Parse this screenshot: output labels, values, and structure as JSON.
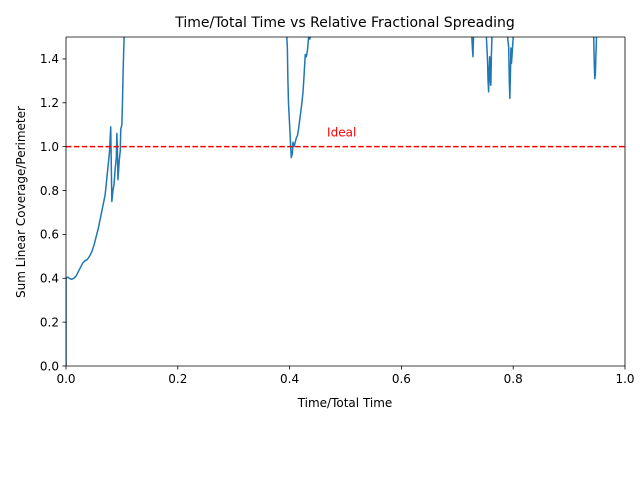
{
  "chart_data": {
    "type": "line",
    "title": "Time/Total Time vs Relative Fractional Spreading",
    "xlabel": "Time/Total Time",
    "ylabel": "Sum Linear Coverage/Perimeter",
    "xlim": [
      0,
      1
    ],
    "ylim": [
      0,
      1.5
    ],
    "xticks": [
      0.0,
      0.2,
      0.4,
      0.6,
      0.8,
      1.0
    ],
    "xtick_labels": [
      "0.0",
      "0.2",
      "0.4",
      "0.6",
      "0.8",
      "1.0"
    ],
    "yticks": [
      0.0,
      0.2,
      0.4,
      0.6,
      0.8,
      1.0,
      1.2,
      1.4
    ],
    "ytick_labels": [
      "0.0",
      "0.2",
      "0.4",
      "0.6",
      "0.8",
      "1.0",
      "1.2",
      "1.4"
    ],
    "grid": false,
    "series": [
      {
        "color": "#1f77b4",
        "segments": [
          [
            [
              0.0,
              0.0
            ],
            [
              0.0,
              0.4
            ],
            [
              0.003,
              0.405
            ],
            [
              0.006,
              0.4
            ],
            [
              0.01,
              0.395
            ],
            [
              0.014,
              0.4
            ],
            [
              0.018,
              0.41
            ],
            [
              0.022,
              0.43
            ],
            [
              0.026,
              0.45
            ],
            [
              0.03,
              0.47
            ],
            [
              0.034,
              0.48
            ],
            [
              0.038,
              0.485
            ],
            [
              0.042,
              0.5
            ],
            [
              0.046,
              0.52
            ],
            [
              0.05,
              0.55
            ],
            [
              0.054,
              0.59
            ],
            [
              0.058,
              0.63
            ],
            [
              0.062,
              0.68
            ],
            [
              0.066,
              0.73
            ],
            [
              0.07,
              0.78
            ],
            [
              0.072,
              0.83
            ],
            [
              0.074,
              0.88
            ],
            [
              0.076,
              0.93
            ],
            [
              0.078,
              0.98
            ],
            [
              0.079,
              1.04
            ],
            [
              0.08,
              1.09
            ],
            [
              0.081,
              0.92
            ],
            [
              0.082,
              0.75
            ],
            [
              0.084,
              0.8
            ],
            [
              0.086,
              0.83
            ],
            [
              0.088,
              0.9
            ],
            [
              0.09,
              0.95
            ],
            [
              0.091,
              1.06
            ],
            [
              0.092,
              0.98
            ],
            [
              0.093,
              0.85
            ],
            [
              0.095,
              0.93
            ],
            [
              0.097,
              0.98
            ],
            [
              0.098,
              1.08
            ],
            [
              0.1,
              1.1
            ],
            [
              0.101,
              1.2
            ],
            [
              0.102,
              1.32
            ],
            [
              0.103,
              1.42
            ],
            [
              0.104,
              1.5
            ]
          ],
          [
            [
              0.395,
              1.5
            ],
            [
              0.396,
              1.45
            ],
            [
              0.397,
              1.3
            ],
            [
              0.398,
              1.2
            ],
            [
              0.4,
              1.1
            ],
            [
              0.402,
              1.0
            ],
            [
              0.403,
              0.95
            ],
            [
              0.405,
              0.97
            ],
            [
              0.406,
              1.02
            ],
            [
              0.408,
              1.0
            ],
            [
              0.41,
              1.02
            ],
            [
              0.412,
              1.04
            ],
            [
              0.414,
              1.05
            ],
            [
              0.416,
              1.08
            ],
            [
              0.418,
              1.12
            ],
            [
              0.42,
              1.16
            ],
            [
              0.422,
              1.2
            ],
            [
              0.424,
              1.25
            ],
            [
              0.426,
              1.33
            ],
            [
              0.428,
              1.42
            ],
            [
              0.43,
              1.41
            ],
            [
              0.432,
              1.44
            ],
            [
              0.434,
              1.5
            ]
          ],
          [
            [
              0.435,
              1.5
            ],
            [
              0.436,
              1.49
            ],
            [
              0.437,
              1.5
            ]
          ],
          [
            [
              0.726,
              1.5
            ],
            [
              0.727,
              1.45
            ],
            [
              0.728,
              1.41
            ],
            [
              0.729,
              1.5
            ]
          ],
          [
            [
              0.752,
              1.5
            ],
            [
              0.754,
              1.4
            ],
            [
              0.755,
              1.3
            ],
            [
              0.756,
              1.25
            ],
            [
              0.757,
              1.35
            ],
            [
              0.758,
              1.41
            ],
            [
              0.759,
              1.3
            ],
            [
              0.76,
              1.28
            ],
            [
              0.761,
              1.42
            ],
            [
              0.762,
              1.5
            ]
          ],
          [
            [
              0.79,
              1.5
            ],
            [
              0.792,
              1.45
            ],
            [
              0.793,
              1.3
            ],
            [
              0.794,
              1.22
            ],
            [
              0.795,
              1.33
            ],
            [
              0.796,
              1.45
            ],
            [
              0.797,
              1.38
            ],
            [
              0.798,
              1.42
            ],
            [
              0.8,
              1.5
            ]
          ],
          [
            [
              0.944,
              1.5
            ],
            [
              0.945,
              1.38
            ],
            [
              0.946,
              1.31
            ],
            [
              0.947,
              1.33
            ],
            [
              0.948,
              1.42
            ],
            [
              0.949,
              1.5
            ]
          ]
        ]
      }
    ],
    "reference_line": {
      "y": 1.0,
      "style": "dashed",
      "color": "#ff0000"
    },
    "annotations": [
      {
        "text": "Ideal",
        "x": 0.467,
        "y": 1.02,
        "color": "#ff0000"
      }
    ]
  }
}
